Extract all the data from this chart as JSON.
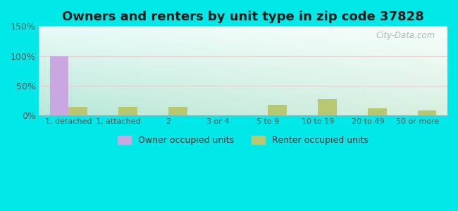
{
  "title": "Owners and renters by unit type in zip code 37828",
  "categories": [
    "1, detached",
    "1, attached",
    "2",
    "3 or 4",
    "5 to 9",
    "10 to 19",
    "20 to 49",
    "50 or more"
  ],
  "owner_values": [
    100,
    0,
    0,
    0,
    0,
    0,
    0,
    0
  ],
  "renter_values": [
    15,
    15,
    15,
    0,
    18,
    28,
    12,
    9
  ],
  "owner_color": "#c9a8e0",
  "renter_color": "#b8c870",
  "background_outer": "#00e8e8",
  "ylim": [
    0,
    150
  ],
  "yticks": [
    0,
    50,
    100,
    150
  ],
  "ytick_labels": [
    "0%",
    "50%",
    "100%",
    "150%"
  ],
  "title_fontsize": 13,
  "legend_labels": [
    "Owner occupied units",
    "Renter occupied units"
  ],
  "watermark": "City-Data.com",
  "bar_width": 0.38
}
